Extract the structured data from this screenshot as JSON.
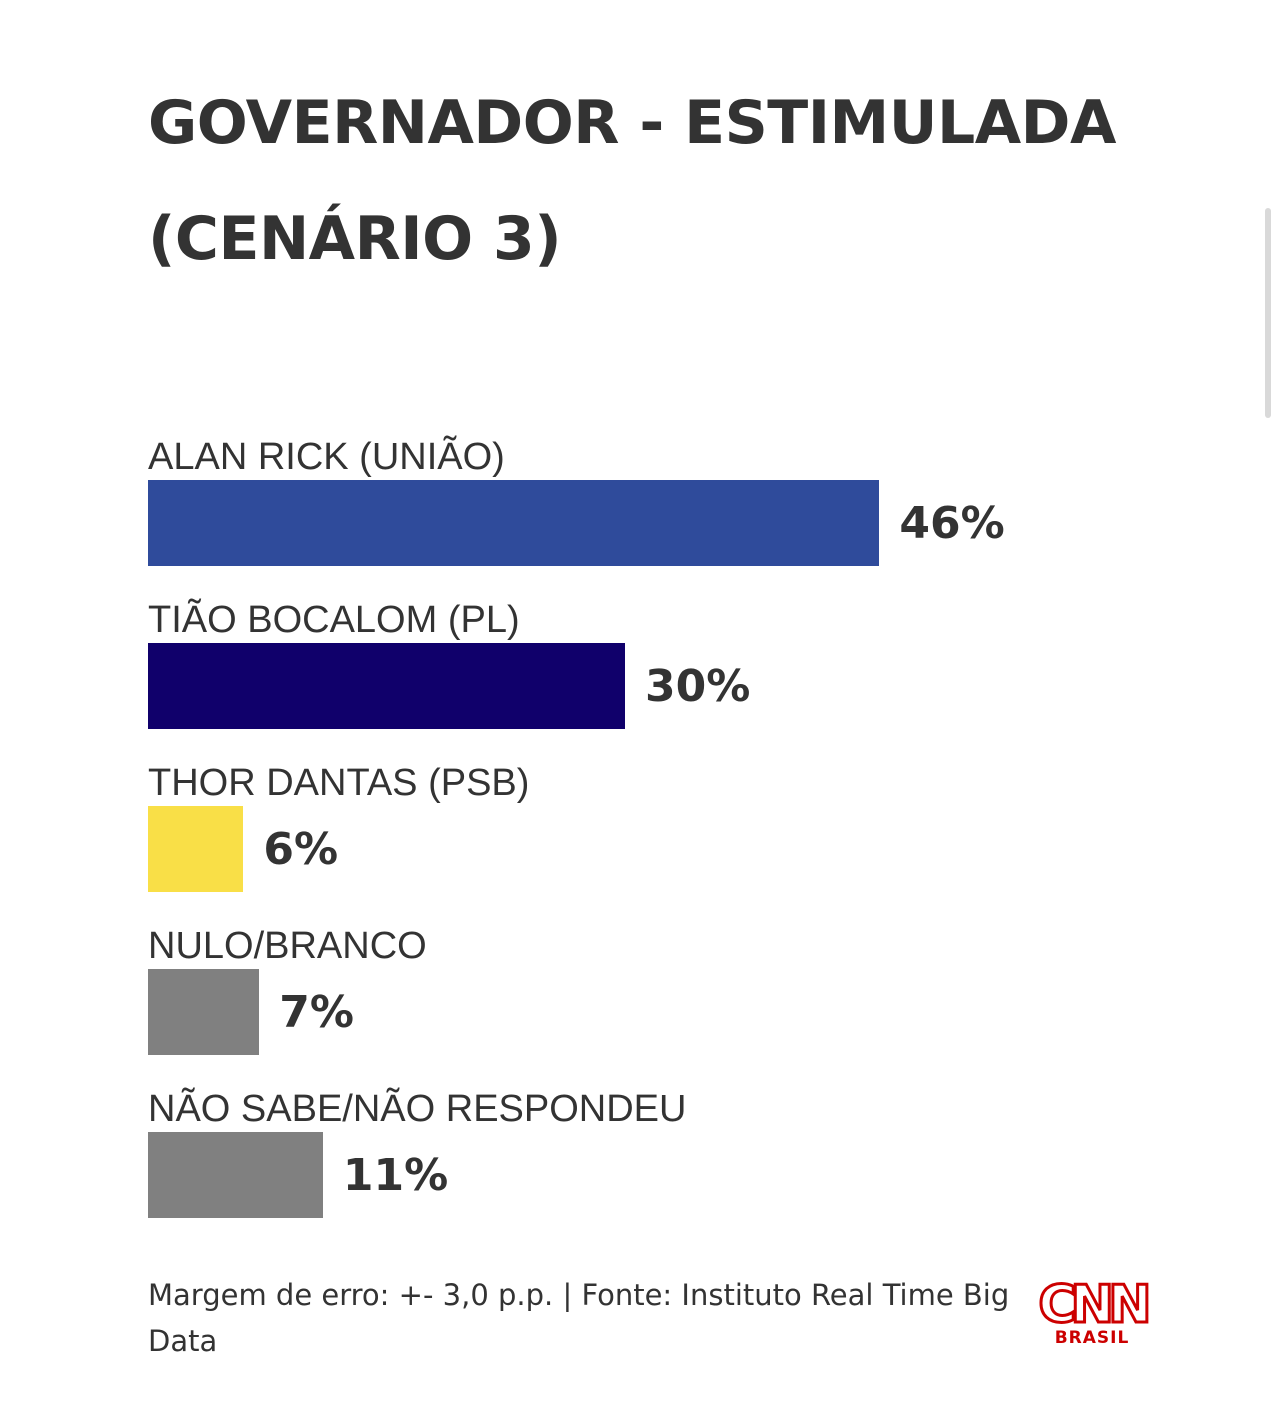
{
  "chart_data": {
    "type": "bar",
    "orientation": "horizontal",
    "title": "GOVERNADOR - ESTIMULADA (CENÁRIO 3)",
    "title_lines": [
      "GOVERNADOR - ESTIMULADA",
      "(CENÁRIO 3)"
    ],
    "categories": [
      "ALAN RICK (UNIÃO)",
      "TIÃO BOCALOM (PL)",
      "THOR DANTAS (PSB)",
      "NULO/BRANCO",
      "NÃO SABE/NÃO RESPONDEU"
    ],
    "values": [
      46,
      30,
      6,
      7,
      11
    ],
    "value_labels": [
      "46%",
      "30%",
      "6%",
      "7%",
      "11%"
    ],
    "colors": [
      "#2f4b9b",
      "#10006b",
      "#f9df47",
      "#808080",
      "#808080"
    ],
    "unit": "%",
    "xlim": [
      0,
      100
    ],
    "grid": false,
    "legend": "none"
  },
  "footer": {
    "note": "Margem de erro: +- 3,0 p.p. | Fonte: Instituto Real Time Big Data"
  },
  "brand": {
    "logo_text": "CNN",
    "logo_subtext": "BRASIL",
    "color": "#cc0000"
  }
}
